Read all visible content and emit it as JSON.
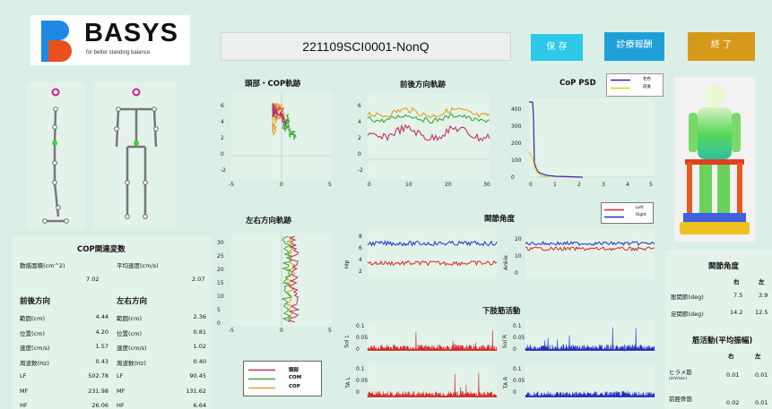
{
  "header": {
    "logo_text": "BASYS",
    "logo_tagline": "for better standing balance",
    "session_id": "221109SCI0001-NonQ",
    "save_label": "保 存",
    "report_label": "診療報酬",
    "end_label": "終 了"
  },
  "charts": {
    "cop_trajectory": {
      "title": "頭部・COP軌跡",
      "yticks": [
        "6",
        "4",
        "2",
        "0",
        "-2"
      ],
      "xticks": [
        "-5",
        "0",
        "5"
      ]
    },
    "ap_direction": {
      "title": "前後方向軌跡",
      "yticks": [
        "6",
        "4",
        "2",
        "0",
        "-2"
      ],
      "xticks": [
        "0",
        "10",
        "20",
        "30"
      ]
    },
    "cop_psd": {
      "title": "CoP  PSD",
      "yticks": [
        "400",
        "300",
        "200",
        "100",
        "0"
      ],
      "xticks": [
        "0",
        "1",
        "2",
        "3",
        "4",
        "5"
      ],
      "legend": [
        "左右",
        "前後"
      ]
    },
    "ml_direction": {
      "title": "左右方向軌跡",
      "yticks": [
        "30",
        "25",
        "20",
        "15",
        "10",
        "5",
        "0"
      ],
      "xticks": [
        "-5",
        "0",
        "5"
      ],
      "legend": [
        "頭部",
        "COM",
        "COP"
      ]
    },
    "joint_angle": {
      "title": "関節角度",
      "legend": [
        "Left",
        "Right"
      ],
      "hip_label": "Hip",
      "ankle_label": "Ankle",
      "hip_yticks": [
        "8",
        "6",
        "4",
        "2"
      ],
      "ankle_yticks": [
        "20",
        "10",
        "0"
      ]
    },
    "emg": {
      "title": "下肢筋活動",
      "sol_l": "Sol L",
      "sol_r": "Sol R",
      "ta_l": "TA L",
      "ta_r": "TA R",
      "yticks": [
        "0.1",
        "0.05",
        "0"
      ]
    }
  },
  "cop_table": {
    "title": "COP関連変数",
    "area_label": "動揺面積(cm^2)",
    "area_value": "7.02",
    "mean_speed_label": "平均速度(cm/s)",
    "mean_speed_value": "2.07",
    "ap_header": "前後方向",
    "ml_header": "左右方向",
    "rows": [
      {
        "label": "範囲(cm)",
        "ap": "4.44",
        "ml": "2.36"
      },
      {
        "label": "位置(cm)",
        "ap": "4.20",
        "ml": "0.81"
      },
      {
        "label": "速度(cm/s)",
        "ap": "1.57",
        "ml": "1.02"
      },
      {
        "label": "周波数(Hz)",
        "ap": "0.43",
        "ml": "0.40"
      },
      {
        "label": "LF",
        "ap": "502.78",
        "ml": "90.45"
      },
      {
        "label": "MF",
        "ap": "231.98",
        "ml": "131.62"
      },
      {
        "label": "HF",
        "ap": "26.06",
        "ml": "6.64"
      }
    ]
  },
  "right_table": {
    "joint_title": "関節角度",
    "right": "右",
    "left": "左",
    "hip_label": "股関節(deg)",
    "hip_r": "7.5",
    "hip_l": "3.9",
    "ankle_label": "足関節(deg)",
    "ankle_r": "14.2",
    "ankle_l": "12.5",
    "emg_title": "筋活動(平均振幅)",
    "sol_label": "ヒラメ筋",
    "sol_unit": "(mV/sec)",
    "sol_r": "0.01",
    "sol_l": "0.01",
    "ta_label": "前脛骨筋",
    "ta_r": "0.02",
    "ta_l": "0.01"
  },
  "colors": {
    "head": "#c0306a",
    "com": "#3aa83a",
    "cop": "#e0a020",
    "left": "#d42a2a",
    "right": "#2030c0",
    "psd_ml": "#4020a0",
    "psd_ap": "#d8d020"
  }
}
